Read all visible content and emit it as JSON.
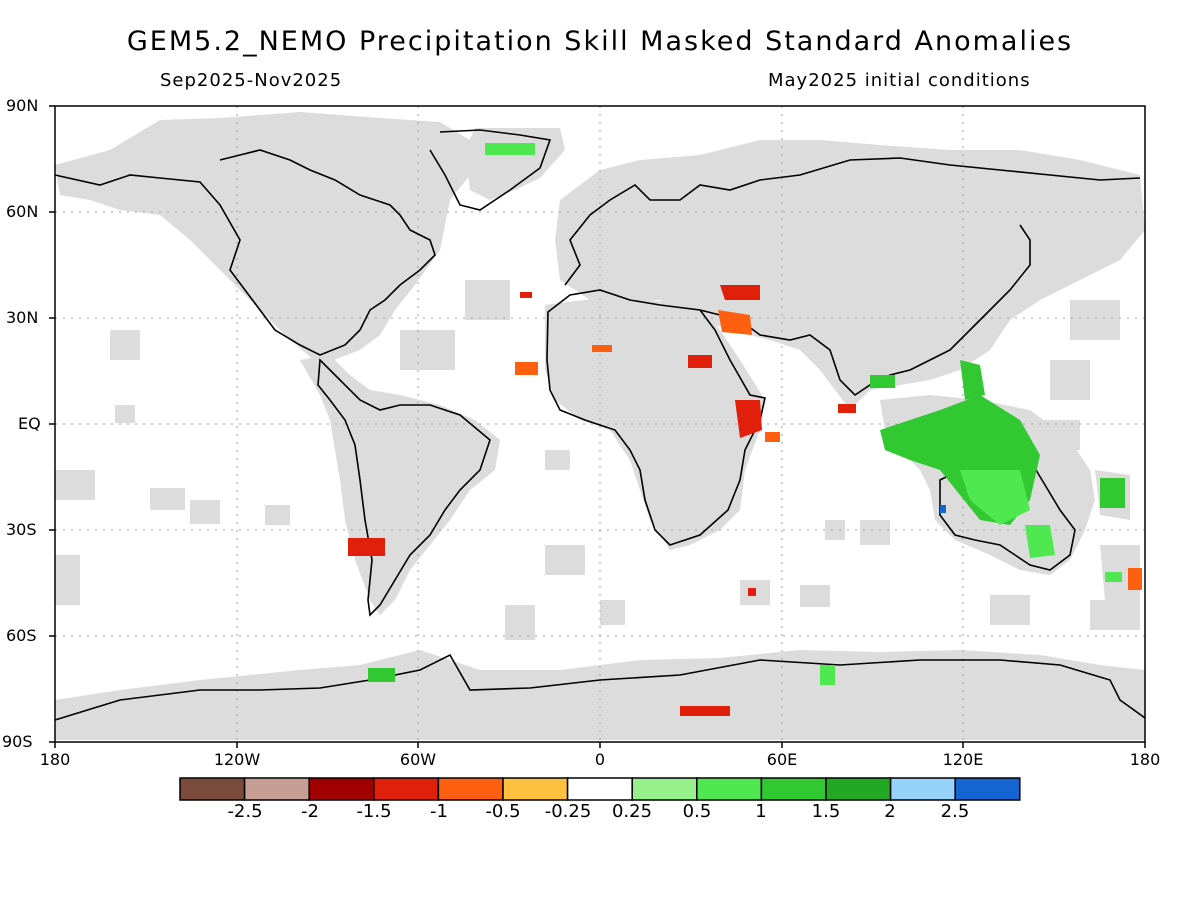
{
  "title": "GEM5.2_NEMO Precipitation Skill Masked Standard Anomalies",
  "subtitle_left": "Sep2025-Nov2025",
  "subtitle_right": "May2025 initial conditions",
  "lat_labels": [
    "90N",
    "60N",
    "30N",
    "EQ",
    "30S",
    "60S",
    "90S"
  ],
  "lon_labels": [
    "180",
    "120W",
    "60W",
    "0",
    "60E",
    "120E",
    "180"
  ],
  "colorbar": {
    "colors": [
      "#7a4a3d",
      "#c79e93",
      "#a00000",
      "#e0200a",
      "#ff6010",
      "#ffc040",
      "#ffffff",
      "#98f08c",
      "#50e850",
      "#32c832",
      "#22a822",
      "#96d2fa",
      "#1464d2"
    ],
    "labels": [
      "-2.5",
      "-2",
      "-1.5",
      "-1",
      "-0.5",
      "-0.25",
      "0.25",
      "0.5",
      "1",
      "1.5",
      "2",
      "2.5"
    ]
  },
  "map_colors": {
    "mask_gray": "#dcdcdc",
    "coast": "#000000",
    "grid": "#a0a0a0"
  }
}
